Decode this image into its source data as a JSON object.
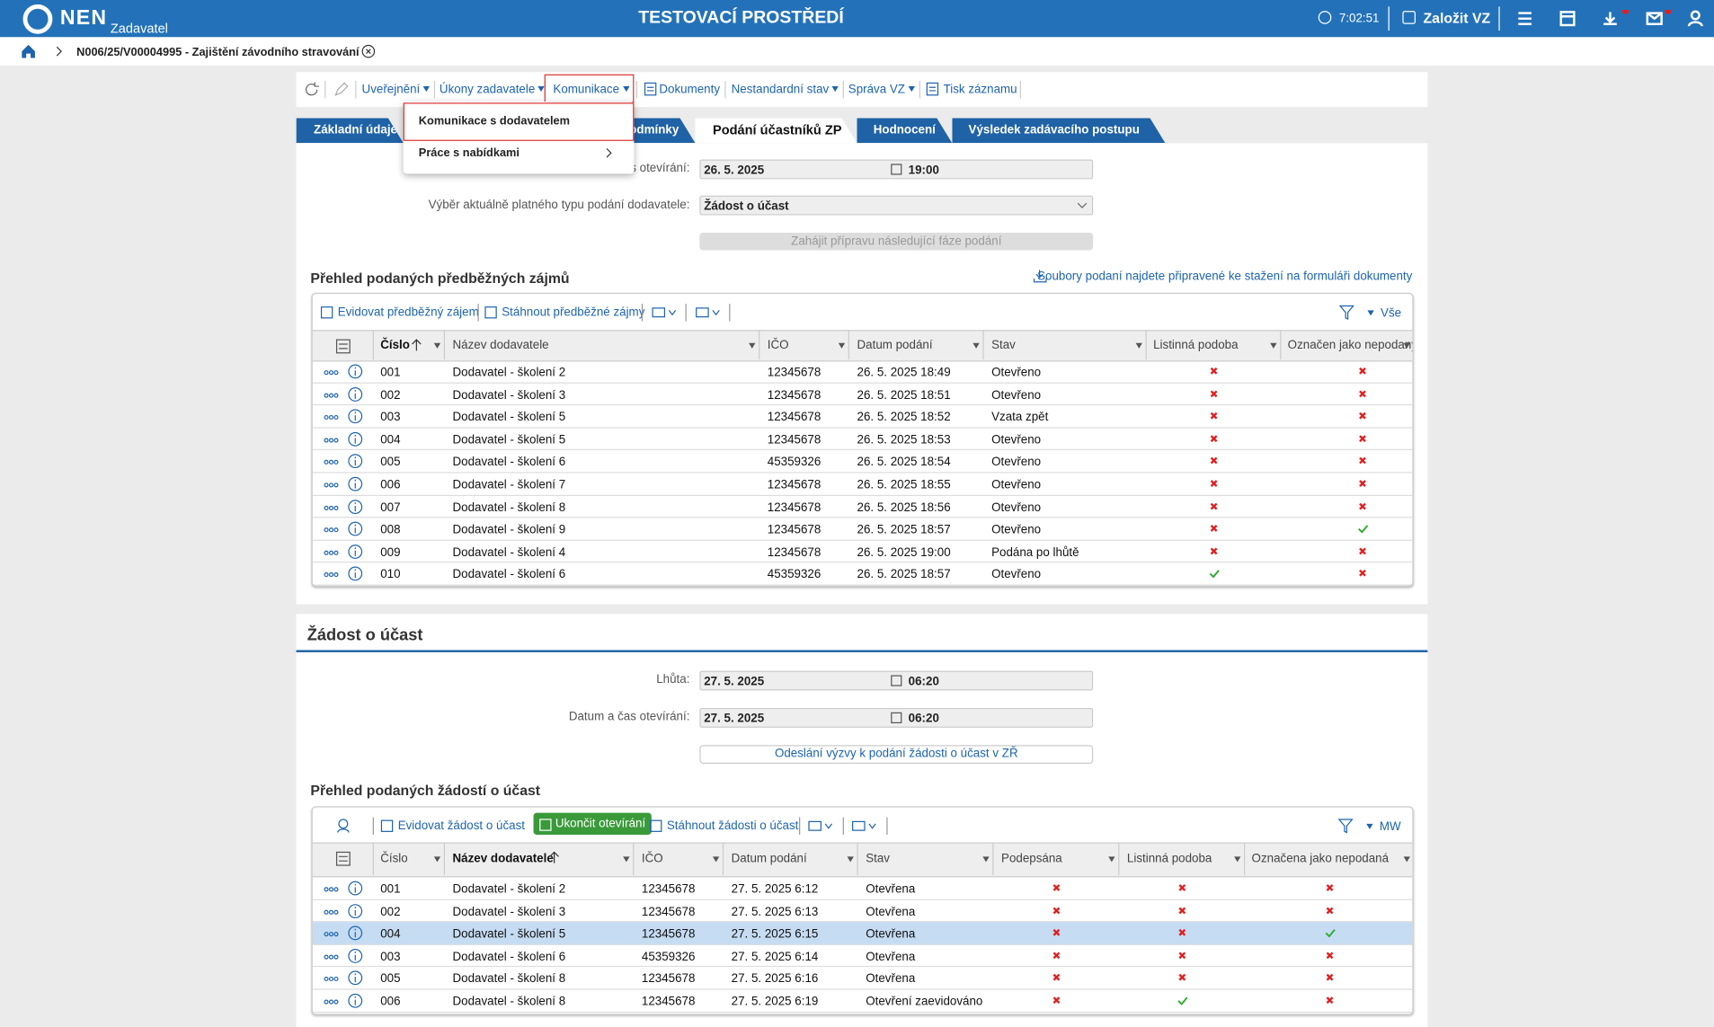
{
  "header": {
    "logo": "NEN",
    "role": "Zadavatel",
    "title": "TESTOVACÍ PROSTŘEDÍ",
    "time": "7:02:51",
    "create_button": "Založit VZ"
  },
  "breadcrumb": {
    "item": "N006/25/V00004995 - Zajištění závodního stravování"
  },
  "toolbar": {
    "items": [
      "Uveřejnění",
      "Úkony zadavatele",
      "Komunikace",
      "Dokumenty",
      "Nestandardní stav",
      "Správa VZ",
      "Tisk záznamu"
    ]
  },
  "dropdown": {
    "items": [
      "Komunikace s dodavatelem",
      "Práce s nabídkami"
    ]
  },
  "tabs": {
    "items": [
      "Základní údaje",
      "Zadávací podmínky",
      "Podání účastníků ZP",
      "Hodnocení",
      "Výsledek zadávacího postupu"
    ]
  },
  "section1": {
    "fields": [
      {
        "label": "Datum a čas otevírání:",
        "date": "26. 5. 2025",
        "time": "19:00"
      },
      {
        "label": "Výběr aktuálně platného typu podání dodavatele:",
        "value": "Žádost o účast"
      }
    ],
    "button": "Zahájit přípravu následující fáze podání"
  },
  "table1": {
    "title": "Přehled podaných předběžných zájmů",
    "note": "Soubory podaní najdete připravené ke stažení na formuláři dokumenty",
    "actions": [
      "Evidovat předběžný zájem",
      "Stáhnout předběžné zájmy"
    ],
    "filter_label": "Vše",
    "columns": [
      "Číslo",
      "Název dodavatele",
      "IČO",
      "Datum podání",
      "Stav",
      "Listinná podoba",
      "Označen jako nepodaný"
    ],
    "rows": [
      [
        "001",
        "Dodavatel - školení 2",
        "12345678",
        "26. 5. 2025 18:49",
        "Otevřeno",
        false,
        false
      ],
      [
        "002",
        "Dodavatel - školení 3",
        "12345678",
        "26. 5. 2025 18:51",
        "Otevřeno",
        false,
        false
      ],
      [
        "003",
        "Dodavatel - školení 5",
        "12345678",
        "26. 5. 2025 18:52",
        "Vzata zpět",
        false,
        false
      ],
      [
        "004",
        "Dodavatel - školení 5",
        "12345678",
        "26. 5. 2025 18:53",
        "Otevřeno",
        false,
        false
      ],
      [
        "005",
        "Dodavatel - školení 6",
        "45359326",
        "26. 5. 2025 18:54",
        "Otevřeno",
        false,
        false
      ],
      [
        "006",
        "Dodavatel - školení 7",
        "12345678",
        "26. 5. 2025 18:55",
        "Otevřeno",
        false,
        false
      ],
      [
        "007",
        "Dodavatel - školení 8",
        "12345678",
        "26. 5. 2025 18:56",
        "Otevřeno",
        false,
        false
      ],
      [
        "008",
        "Dodavatel - školení 9",
        "12345678",
        "26. 5. 2025 18:57",
        "Otevřeno",
        false,
        true
      ],
      [
        "009",
        "Dodavatel - školení 4",
        "12345678",
        "26. 5. 2025 19:00",
        "Podána po lhůtě",
        false,
        false
      ],
      [
        "010",
        "Dodavatel - školení 6",
        "45359326",
        "26. 5. 2025 18:57",
        "Otevřeno",
        true,
        false
      ]
    ]
  },
  "section2": {
    "title": "Žádost o účast",
    "fields": [
      {
        "label": "Lhůta:",
        "date": "27. 5. 2025",
        "time": "06:20"
      },
      {
        "label": "Datum a čas otevírání:",
        "date": "27. 5. 2025",
        "time": "06:20"
      }
    ],
    "button": "Odeslání výzvy k podání žádosti o účast v ZŘ"
  },
  "table2": {
    "title": "Přehled podaných žádostí o účast",
    "actions": [
      "Evidovat žádost o účast",
      "Ukončit otevírání",
      "Stáhnout žádosti o účast"
    ],
    "filter_label": "MW",
    "columns": [
      "Číslo",
      "Název dodavatele",
      "IČO",
      "Datum podání",
      "Stav",
      "Podepsána",
      "Listinná podoba",
      "Označena jako nepodaná"
    ],
    "rows": [
      [
        "001",
        "Dodavatel - školení 2",
        "12345678",
        "27. 5. 2025 6:12",
        "Otevřena",
        false,
        false,
        false
      ],
      [
        "002",
        "Dodavatel - školení 3",
        "12345678",
        "27. 5. 2025 6:13",
        "Otevřena",
        false,
        false,
        false
      ],
      [
        "004",
        "Dodavatel - školení 5",
        "12345678",
        "27. 5. 2025 6:15",
        "Otevřena",
        false,
        false,
        true
      ],
      [
        "003",
        "Dodavatel - školení 6",
        "45359326",
        "27. 5. 2025 6:14",
        "Otevřena",
        false,
        false,
        false
      ],
      [
        "005",
        "Dodavatel - školení 8",
        "12345678",
        "27. 5. 2025 6:16",
        "Otevřena",
        false,
        false,
        false
      ],
      [
        "006",
        "Dodavatel - školení 8",
        "12345678",
        "27. 5. 2025 6:19",
        "Otevření zaevidováno",
        false,
        true,
        false
      ]
    ]
  }
}
